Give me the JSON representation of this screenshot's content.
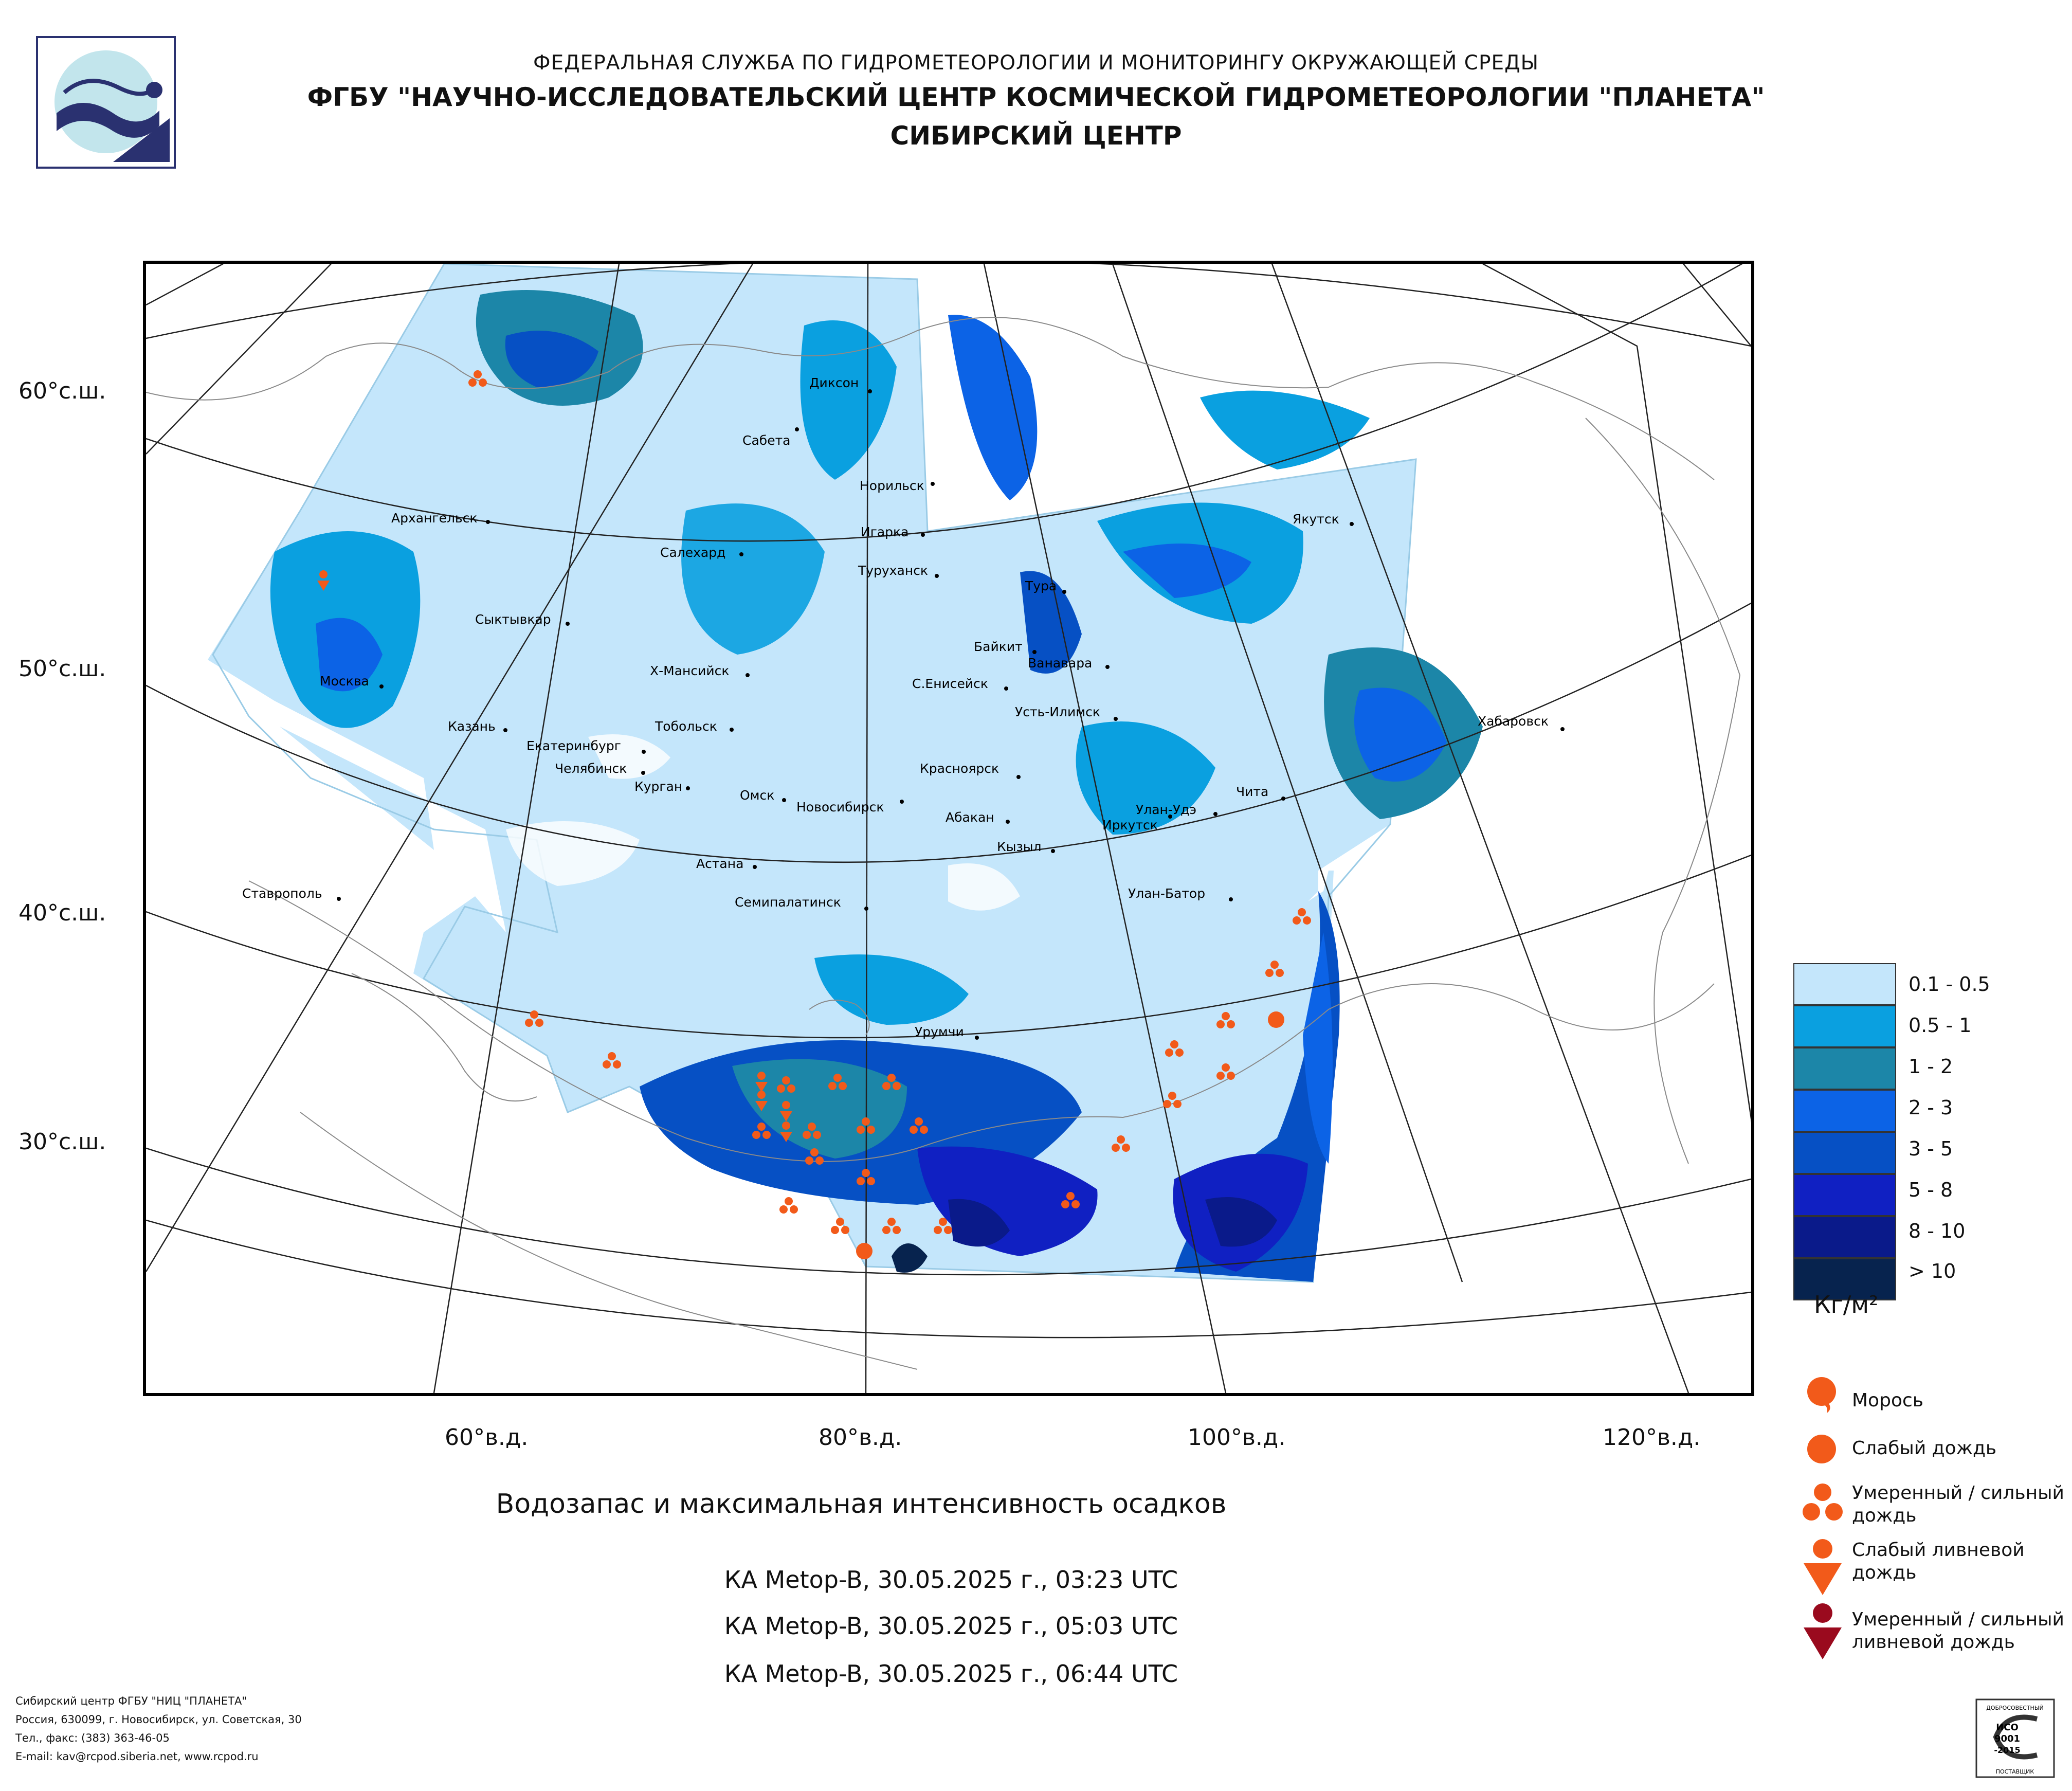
{
  "header": {
    "line1": "ФЕДЕРАЛЬНАЯ СЛУЖБА ПО ГИДРОМЕТЕОРОЛОГИИ И МОНИТОРИНГУ ОКРУЖАЮЩЕЙ СРЕДЫ",
    "line2": "ФГБУ \"НАУЧНО-ИССЛЕДОВАТЕЛЬСКИЙ ЦЕНТР КОСМИЧЕСКОЙ ГИДРОМЕТЕОРОЛОГИИ \"ПЛАНЕТА\"",
    "line3": "СИБИРСКИЙ ЦЕНТР"
  },
  "map": {
    "lat_labels": [
      "60°с.ш.",
      "50°с.ш.",
      "40°с.ш.",
      "30°с.ш."
    ],
    "lon_labels": [
      "60°в.д.",
      "80°в.д.",
      "100°в.д.",
      "120°в.д."
    ],
    "cities": [
      "Диксон",
      "Сабета",
      "Норильск",
      "Игарка",
      "Туруханск",
      "Салехард",
      "Архангельск",
      "Якутск",
      "Тура",
      "Сыктывкар",
      "Байкит",
      "Ванавара",
      "Х-Мансийск",
      "С.Енисейск",
      "Москва",
      "Усть-Илимск",
      "Хабаровск",
      "Казань",
      "Тобольск",
      "Екатеринбург",
      "Челябинск",
      "Курган",
      "Омск",
      "Новосибирск",
      "Красноярск",
      "Чита",
      "Абакан",
      "Иркутск",
      "Улан-Удэ",
      "Кызыл",
      "Астана",
      "Ставрополь",
      "Семипалатинск",
      "Улан-Батор",
      "Урумчи"
    ]
  },
  "legend": {
    "ranges": [
      "0.1 - 0.5",
      "0.5 - 1",
      "1 - 2",
      "2 - 3",
      "3 - 5",
      "5 - 8",
      "8 - 10",
      "> 10"
    ],
    "colors": [
      "#c4e6fb",
      "#0aa0e0",
      "#1c86a8",
      "#0c63e6",
      "#0650c4",
      "#1020c2",
      "#0a1a8a",
      "#07234e"
    ],
    "unit": "Кг/м²",
    "symbols": {
      "drizzle": "Морось",
      "light_rain": "Слабый дождь",
      "moderate_rain": "Умеренный / сильный дождь",
      "light_shower": "Слабый ливневой дождь",
      "moderate_shower": "Умеренный / сильный ливневой дождь"
    },
    "symbol_icons": [
      "drizzle-icon",
      "light-rain-icon",
      "moderate-rain-icon",
      "light-shower-icon",
      "moderate-shower-icon"
    ]
  },
  "caption": "Водозапас и максимальная интенсивность осадков",
  "passes": [
    "КА Metop-B, 30.05.2025 г., 03:23 UTC",
    "КА Metop-B, 30.05.2025 г., 05:03 UTC",
    "КА Metop-B, 30.05.2025 г., 06:44 UTC"
  ],
  "footer": {
    "line1": "Сибирский центр ФГБУ \"НИЦ \"ПЛАНЕТА\"",
    "line2": "Россия, 630099, г. Новосибирск, ул. Советская, 30",
    "line3": "Тел., факс: (383) 363-46-05",
    "line4": "E-mail: kav@rcpod.siberia.net, www.rcpod.ru"
  },
  "badge": {
    "top": "ДОБРОСОВЕСТНЫЙ",
    "line1": "ИСО",
    "line2": "9001",
    "line3": "-2015",
    "bottom": "ПОСТАВЩИК"
  },
  "colors": {
    "orange": "#f25a1a",
    "dark_red": "#9a0a1e",
    "logo_blue": "#2a3170",
    "logo_cyan": "#8fd0dc"
  }
}
